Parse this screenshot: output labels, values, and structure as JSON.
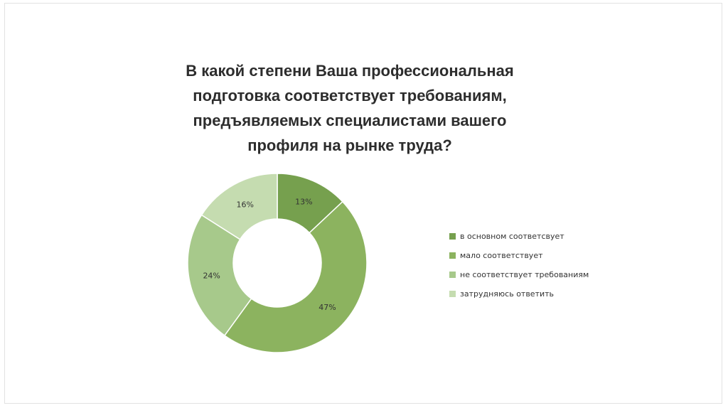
{
  "chart_data": {
    "type": "pie",
    "title": "В какой степени Ваша профессиональная подготовка соответствует требованиям, предъявляемых специалистами вашего профиля на рынке труда?",
    "title_lines": [
      "В какой степени Ваша профессиональная",
      "подготовка соответствует требованиям,",
      "предъявляемых специалистами вашего",
      "профиля на рынке труда?"
    ],
    "style": "doughnut",
    "start": "top",
    "direction": "clockwise",
    "legend_position": "right",
    "categories": [
      "в основном соответсвует",
      "мало соответствует",
      "не соответствует требованиям",
      "затрудняюсь ответить"
    ],
    "values": [
      13,
      47,
      24,
      16
    ],
    "data_labels": [
      "13%",
      "47%",
      "24%",
      "16%"
    ],
    "colors": [
      "#76a04e",
      "#8cb35f",
      "#a7c98b",
      "#c5dcb0"
    ]
  }
}
